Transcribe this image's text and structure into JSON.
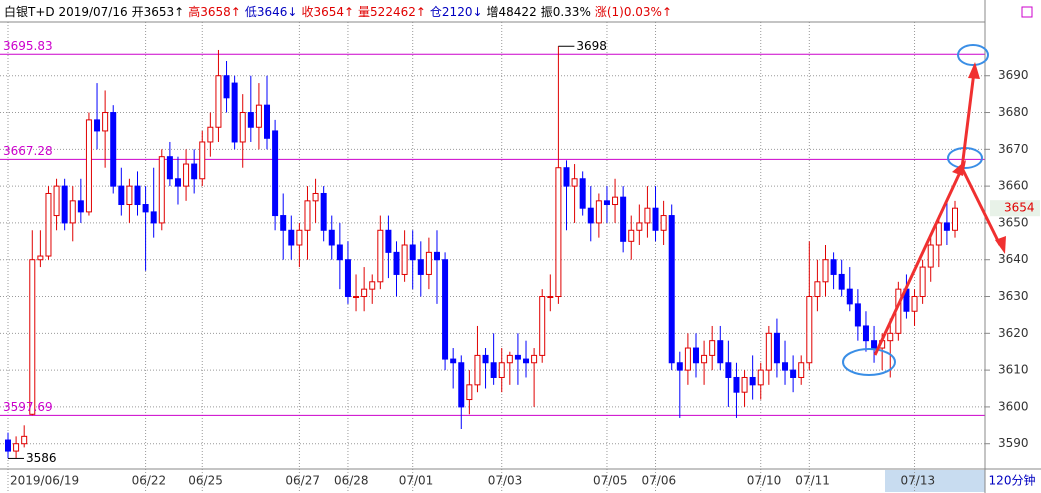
{
  "chart_data": {
    "type": "candlestick",
    "info": [
      {
        "text": "白银T+D 2019/07/16",
        "color": "#000000"
      },
      {
        "text": "开3653↑",
        "color": "#000000"
      },
      {
        "text": "高3658↑",
        "color": "#e00000"
      },
      {
        "text": "低3646↓",
        "color": "#0000c0"
      },
      {
        "text": "收3654↑",
        "color": "#e00000"
      },
      {
        "text": "量522462↑",
        "color": "#e00000"
      },
      {
        "text": "仓2120↓",
        "color": "#0000c0"
      },
      {
        "text": "增48422",
        "color": "#000000"
      },
      {
        "text": "振0.33%",
        "color": "#000000"
      },
      {
        "text": "涨(1)0.03%↑",
        "color": "#e00000"
      }
    ],
    "period": "120分钟",
    "colors": {
      "up": "#e00000",
      "down": "#0000ff",
      "level": "#cc00cc"
    },
    "ohlc": [
      [
        3591,
        3593,
        3586,
        3588
      ],
      [
        3588,
        3592,
        3586,
        3590
      ],
      [
        3590,
        3595,
        3589,
        3592
      ],
      [
        3598,
        3648,
        3597.69,
        3640
      ],
      [
        3640,
        3648,
        3638,
        3641
      ],
      [
        3641,
        3660,
        3640,
        3658
      ],
      [
        3652,
        3662,
        3648,
        3660
      ],
      [
        3660,
        3662,
        3648,
        3650
      ],
      [
        3650,
        3660,
        3645,
        3656
      ],
      [
        3656,
        3662,
        3650,
        3653
      ],
      [
        3653,
        3680,
        3652,
        3678
      ],
      [
        3678,
        3688,
        3670,
        3675
      ],
      [
        3675,
        3686,
        3665,
        3680
      ],
      [
        3680,
        3682,
        3658,
        3660
      ],
      [
        3660,
        3665,
        3652,
        3655
      ],
      [
        3655,
        3662,
        3650,
        3660
      ],
      [
        3660,
        3664,
        3652,
        3655
      ],
      [
        3655,
        3660,
        3637,
        3653
      ],
      [
        3653,
        3665,
        3646,
        3650
      ],
      [
        3650,
        3670,
        3648,
        3668
      ],
      [
        3668,
        3672,
        3660,
        3662
      ],
      [
        3662,
        3668,
        3655,
        3660
      ],
      [
        3660,
        3670,
        3656,
        3666
      ],
      [
        3666,
        3670,
        3658,
        3662
      ],
      [
        3662,
        3675,
        3660,
        3672
      ],
      [
        3672,
        3680,
        3668,
        3676
      ],
      [
        3676,
        3697,
        3672,
        3690
      ],
      [
        3690,
        3694,
        3680,
        3684
      ],
      [
        3688,
        3690,
        3670,
        3672
      ],
      [
        3672,
        3685,
        3665,
        3680
      ],
      [
        3680,
        3690,
        3672,
        3676
      ],
      [
        3676,
        3688,
        3670,
        3682
      ],
      [
        3682,
        3690,
        3670,
        3673
      ],
      [
        3675,
        3678,
        3648,
        3652
      ],
      [
        3652,
        3658,
        3640,
        3648
      ],
      [
        3648,
        3652,
        3640,
        3644
      ],
      [
        3644,
        3650,
        3638,
        3648
      ],
      [
        3648,
        3660,
        3640,
        3656
      ],
      [
        3656,
        3662,
        3650,
        3658
      ],
      [
        3658,
        3660,
        3645,
        3648
      ],
      [
        3648,
        3652,
        3640,
        3644
      ],
      [
        3644,
        3650,
        3632,
        3640
      ],
      [
        3640,
        3645,
        3628,
        3630
      ],
      [
        3630,
        3636,
        3626,
        3630
      ],
      [
        3630,
        3638,
        3626,
        3632
      ],
      [
        3632,
        3636,
        3628,
        3634
      ],
      [
        3634,
        3652,
        3632,
        3648
      ],
      [
        3648,
        3652,
        3635,
        3642
      ],
      [
        3642,
        3645,
        3630,
        3636
      ],
      [
        3636,
        3648,
        3634,
        3644
      ],
      [
        3644,
        3648,
        3632,
        3640
      ],
      [
        3640,
        3645,
        3630,
        3636
      ],
      [
        3636,
        3646,
        3632,
        3642
      ],
      [
        3642,
        3648,
        3628,
        3640
      ],
      [
        3640,
        3642,
        3610,
        3613
      ],
      [
        3613,
        3616,
        3605,
        3612
      ],
      [
        3612,
        3614,
        3594,
        3600
      ],
      [
        3602,
        3610,
        3598,
        3606
      ],
      [
        3606,
        3622,
        3604,
        3614
      ],
      [
        3614,
        3616,
        3605,
        3612
      ],
      [
        3612,
        3620,
        3606,
        3608
      ],
      [
        3608,
        3616,
        3604,
        3612
      ],
      [
        3612,
        3615,
        3606,
        3614
      ],
      [
        3614,
        3620,
        3606,
        3613
      ],
      [
        3613,
        3618,
        3608,
        3612
      ],
      [
        3612,
        3616,
        3600,
        3614
      ],
      [
        3614,
        3632,
        3612,
        3630
      ],
      [
        3630,
        3636,
        3626,
        3630
      ],
      [
        3630,
        3698,
        3628,
        3665
      ],
      [
        3665,
        3667,
        3648,
        3660
      ],
      [
        3660,
        3666,
        3650,
        3662
      ],
      [
        3662,
        3664,
        3652,
        3654
      ],
      [
        3654,
        3660,
        3645,
        3650
      ],
      [
        3650,
        3658,
        3646,
        3656
      ],
      [
        3656,
        3660,
        3650,
        3655
      ],
      [
        3655,
        3662,
        3650,
        3657
      ],
      [
        3657,
        3660,
        3642,
        3645
      ],
      [
        3645,
        3652,
        3640,
        3648
      ],
      [
        3648,
        3655,
        3644,
        3650
      ],
      [
        3650,
        3660,
        3646,
        3654
      ],
      [
        3654,
        3660,
        3645,
        3648
      ],
      [
        3648,
        3656,
        3644,
        3652
      ],
      [
        3652,
        3655,
        3610,
        3612
      ],
      [
        3612,
        3615,
        3597,
        3610
      ],
      [
        3610,
        3620,
        3606,
        3616
      ],
      [
        3616,
        3620,
        3608,
        3612
      ],
      [
        3612,
        3618,
        3606,
        3614
      ],
      [
        3614,
        3622,
        3610,
        3618
      ],
      [
        3618,
        3622,
        3610,
        3612
      ],
      [
        3612,
        3618,
        3600,
        3608
      ],
      [
        3608,
        3612,
        3597,
        3604
      ],
      [
        3604,
        3610,
        3600,
        3608
      ],
      [
        3608,
        3614,
        3602,
        3606
      ],
      [
        3606,
        3612,
        3602,
        3610
      ],
      [
        3610,
        3622,
        3606,
        3620
      ],
      [
        3620,
        3624,
        3608,
        3612
      ],
      [
        3612,
        3618,
        3606,
        3610
      ],
      [
        3610,
        3614,
        3604,
        3608
      ],
      [
        3608,
        3614,
        3606,
        3612
      ],
      [
        3612,
        3645,
        3610,
        3630
      ],
      [
        3630,
        3640,
        3626,
        3634
      ],
      [
        3634,
        3644,
        3630,
        3640
      ],
      [
        3640,
        3642,
        3632,
        3636
      ],
      [
        3636,
        3640,
        3630,
        3632
      ],
      [
        3632,
        3638,
        3626,
        3628
      ],
      [
        3628,
        3632,
        3618,
        3622
      ],
      [
        3622,
        3626,
        3615,
        3618
      ],
      [
        3618,
        3622,
        3612,
        3616
      ],
      [
        3616,
        3620,
        3610,
        3618
      ],
      [
        3618,
        3624,
        3608,
        3620
      ],
      [
        3620,
        3634,
        3618,
        3632
      ],
      [
        3632,
        3636,
        3624,
        3626
      ],
      [
        3626,
        3632,
        3622,
        3630
      ],
      [
        3630,
        3640,
        3628,
        3638
      ],
      [
        3638,
        3646,
        3634,
        3644
      ],
      [
        3644,
        3652,
        3638,
        3650
      ],
      [
        3650,
        3656,
        3644,
        3648
      ],
      [
        3648,
        3656,
        3646,
        3654
      ]
    ],
    "xticks": [
      {
        "value": 0,
        "label": "2019/06/19"
      },
      {
        "value": 17,
        "label": "06/22"
      },
      {
        "value": 24,
        "label": "06/25"
      },
      {
        "value": 36,
        "label": "06/27"
      },
      {
        "value": 42,
        "label": "06/28"
      },
      {
        "value": 50,
        "label": "07/01"
      },
      {
        "value": 61,
        "label": "07/03"
      },
      {
        "value": 74,
        "label": "07/05"
      },
      {
        "value": 80,
        "label": "07/06"
      },
      {
        "value": 93,
        "label": "07/10"
      },
      {
        "value": 99,
        "label": "07/11"
      },
      {
        "value": 112,
        "label": "07/13"
      }
    ],
    "ylim": [
      3583.4,
      3704.6
    ],
    "yticks": [
      3590,
      3600,
      3610,
      3620,
      3630,
      3640,
      3650,
      3660,
      3670,
      3680,
      3690
    ],
    "levels": [
      3695.83,
      3667.28,
      3597.69
    ],
    "extremes": [
      3698,
      3586
    ],
    "last_price": 3654
  }
}
